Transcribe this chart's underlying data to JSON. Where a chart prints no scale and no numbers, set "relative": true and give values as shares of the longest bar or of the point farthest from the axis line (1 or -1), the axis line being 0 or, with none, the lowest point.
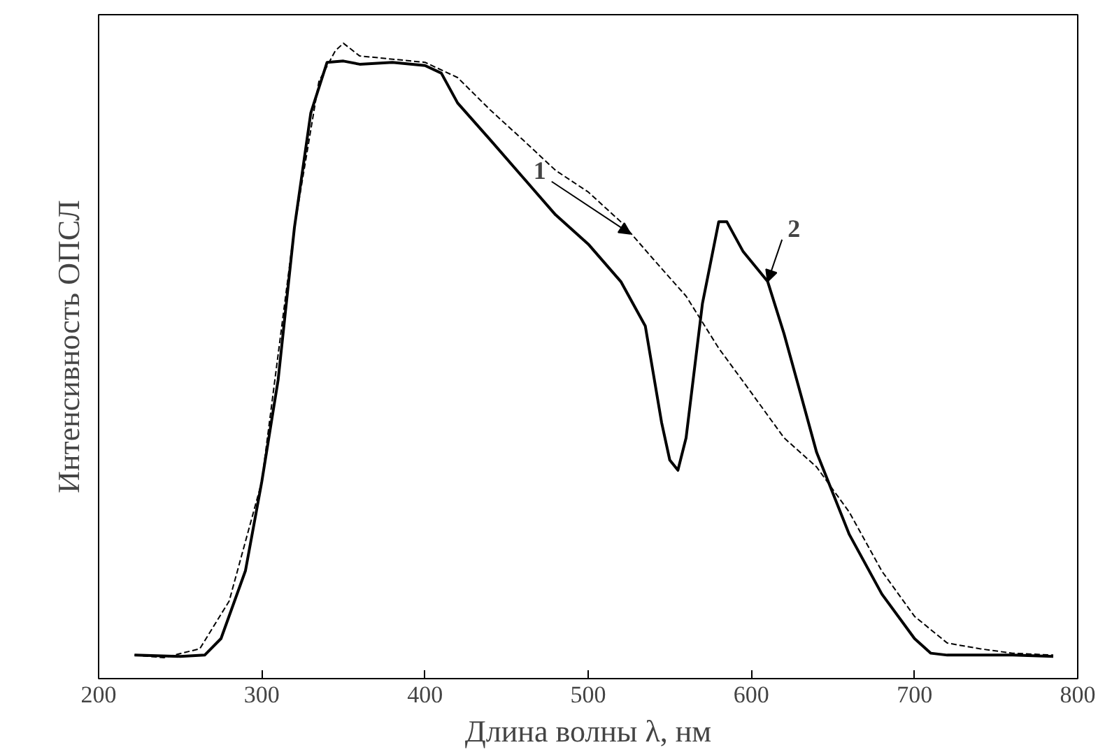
{
  "chart_data": {
    "type": "line",
    "xlabel": "Длина волны λ, нм",
    "ylabel": "Интенсивность ОПСЛ",
    "relative": true,
    "xlim": [
      200,
      800
    ],
    "xticks": [
      200,
      300,
      400,
      500,
      600,
      700,
      800
    ],
    "grid": false,
    "series": [
      {
        "color": "#000000",
        "line_style": "dashed",
        "x": [
          222,
          240,
          262,
          280,
          300,
          320,
          335,
          345,
          350,
          360,
          400,
          420,
          440,
          460,
          480,
          500,
          520,
          540,
          560,
          580,
          600,
          620,
          640,
          660,
          680,
          700,
          720,
          740,
          760,
          785
        ],
        "values": [
          0.037,
          0.033,
          0.047,
          0.122,
          0.31,
          0.71,
          0.94,
          0.988,
          1.0,
          0.98,
          0.97,
          0.946,
          0.895,
          0.848,
          0.8,
          0.766,
          0.719,
          0.66,
          0.602,
          0.52,
          0.45,
          0.379,
          0.333,
          0.262,
          0.169,
          0.098,
          0.056,
          0.047,
          0.04,
          0.037
        ]
      },
      {
        "color": "#000000",
        "line_style": "solid",
        "x": [
          222,
          250,
          265,
          275,
          290,
          300,
          310,
          320,
          330,
          340,
          350,
          360,
          380,
          400,
          410,
          420,
          440,
          460,
          480,
          500,
          520,
          535,
          545,
          550,
          555,
          560,
          570,
          580,
          585,
          595,
          610,
          620,
          630,
          640,
          660,
          680,
          700,
          710,
          720,
          760,
          785
        ],
        "values": [
          0.037,
          0.035,
          0.037,
          0.063,
          0.17,
          0.31,
          0.47,
          0.71,
          0.89,
          0.97,
          0.972,
          0.967,
          0.97,
          0.965,
          0.953,
          0.906,
          0.848,
          0.789,
          0.73,
          0.684,
          0.625,
          0.555,
          0.403,
          0.344,
          0.328,
          0.379,
          0.59,
          0.719,
          0.719,
          0.672,
          0.625,
          0.543,
          0.45,
          0.356,
          0.227,
          0.133,
          0.063,
          0.04,
          0.037,
          0.037,
          0.035
        ]
      }
    ],
    "annotations": [
      {
        "text": "1",
        "x": 526,
        "y": 0.7
      },
      {
        "text": "2",
        "x": 610,
        "y": 0.625
      }
    ]
  }
}
